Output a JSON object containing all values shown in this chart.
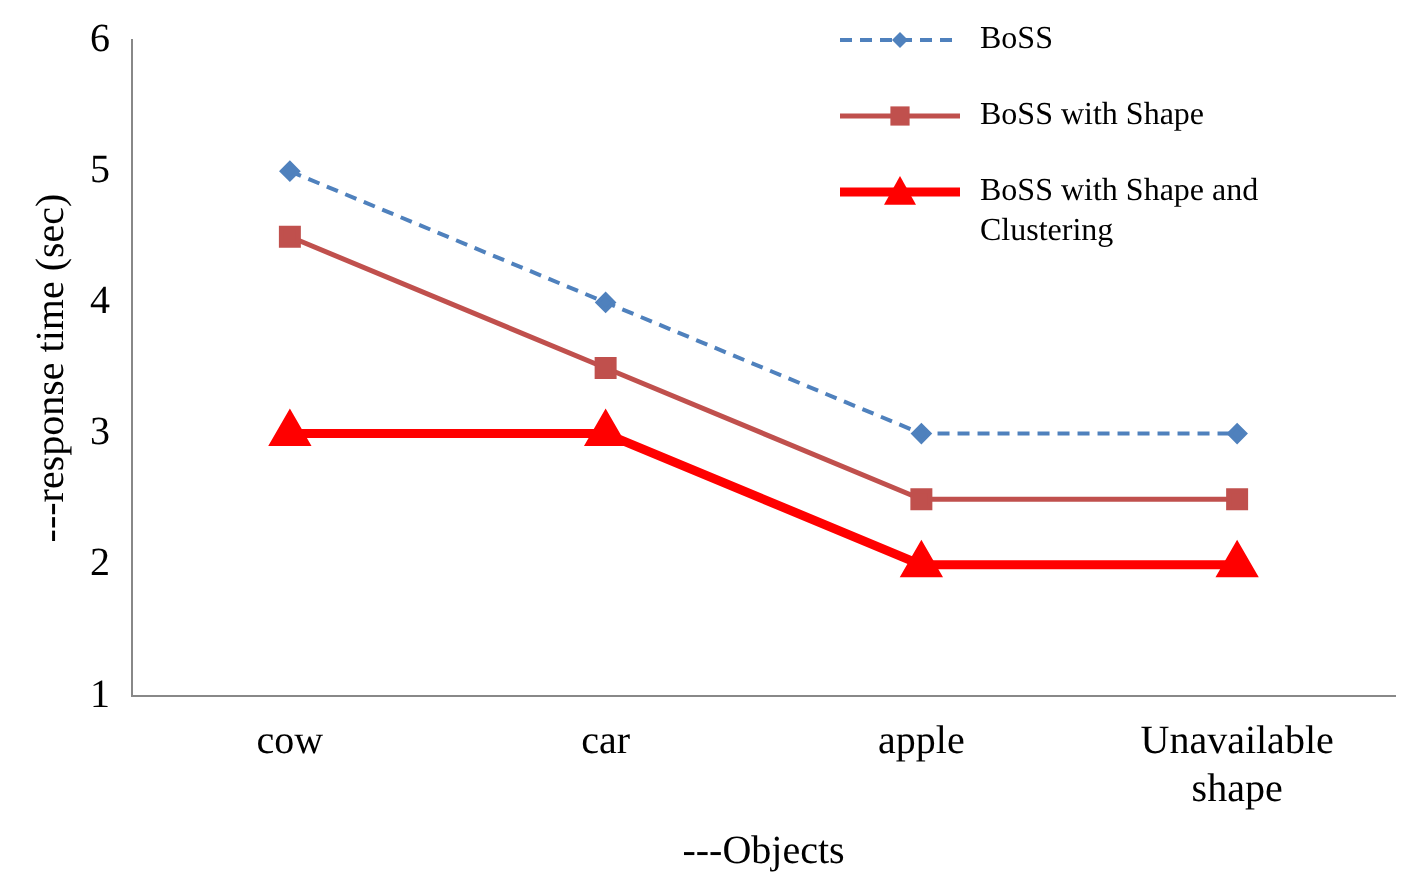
{
  "chart_data": {
    "type": "line",
    "xlabel": "---Objects",
    "ylabel": "---response time (sec)",
    "categories": [
      "cow",
      "car",
      "apple",
      "Unavailable shape"
    ],
    "ylim": [
      1,
      6
    ],
    "yticks": [
      1,
      2,
      3,
      4,
      5,
      6
    ],
    "grid": false,
    "legend": "top right",
    "series": [
      {
        "name": "BoSS",
        "color": "#4f81bd",
        "values": [
          5,
          4,
          3,
          3
        ],
        "marker": "diamond",
        "line_style": "dashed"
      },
      {
        "name": "BoSS with Shape",
        "color": "#c0504d",
        "values": [
          4.5,
          3.5,
          2.5,
          2.5
        ],
        "marker": "square",
        "line_style": "solid"
      },
      {
        "name": "BoSS with Shape and Clustering",
        "color": "#ff0000",
        "values": [
          3,
          3,
          2,
          2
        ],
        "marker": "triangle",
        "line_style": "solid"
      }
    ]
  }
}
